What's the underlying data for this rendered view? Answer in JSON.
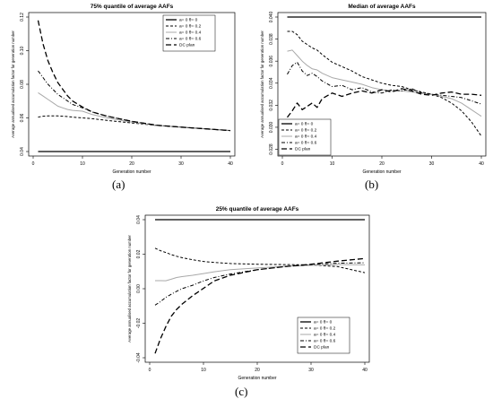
{
  "captions": {
    "a": "(a)",
    "b": "(b)",
    "c": "(c)"
  },
  "colors": {
    "text": "#000000",
    "grid": "#000000",
    "alt_series": "#a9a9a9"
  },
  "chart_data": [
    {
      "type": "line",
      "title": "75% quantile of average AAFs",
      "xlabel": "Generation number",
      "ylabel": "Average annualised accumulation factor for generation number",
      "xlim": [
        0,
        40
      ],
      "ylim": [
        0.04,
        0.12
      ],
      "xticks": [
        "0",
        "10",
        "20",
        "30",
        "40"
      ],
      "yticks": [
        "0.04",
        "0.06",
        "0.08",
        "0.10",
        "0.12"
      ],
      "legend_position": "top-right",
      "x": [
        1,
        2,
        3,
        4,
        5,
        6,
        7,
        8,
        10,
        12,
        15,
        20,
        25,
        30,
        35,
        40
      ],
      "series": [
        {
          "name": "a= 0  θ= 0",
          "style": "solid",
          "color": "#000000",
          "width": 1.3,
          "values": [
            0.04,
            0.04,
            0.04,
            0.04,
            0.04,
            0.04,
            0.04,
            0.04,
            0.04,
            0.04,
            0.04,
            0.04,
            0.04,
            0.04,
            0.04,
            0.04
          ]
        },
        {
          "name": "a= 0  θ= 0.2",
          "style": "dashed",
          "color": "#000000",
          "width": 1,
          "values": [
            0.0605,
            0.061,
            0.0612,
            0.0612,
            0.0612,
            0.061,
            0.0608,
            0.0605,
            0.06,
            0.0595,
            0.0585,
            0.057,
            0.0555,
            0.0545,
            0.0535,
            0.0525
          ]
        },
        {
          "name": "a= 0  θ= 0.4",
          "style": "solid",
          "color": "#a9a9a9",
          "width": 1,
          "values": [
            0.075,
            0.073,
            0.071,
            0.069,
            0.067,
            0.066,
            0.065,
            0.0645,
            0.064,
            0.062,
            0.06,
            0.0575,
            0.0555,
            0.0545,
            0.0535,
            0.0525
          ]
        },
        {
          "name": "a= 0  θ= 0.6",
          "style": "dotdash",
          "color": "#000000",
          "width": 1,
          "values": [
            0.088,
            0.084,
            0.08,
            0.077,
            0.074,
            0.072,
            0.07,
            0.068,
            0.066,
            0.0635,
            0.061,
            0.058,
            0.0557,
            0.0545,
            0.0535,
            0.0525
          ]
        },
        {
          "name": "DC plan",
          "style": "longdash",
          "color": "#000000",
          "width": 1.3,
          "values": [
            0.118,
            0.104,
            0.094,
            0.087,
            0.081,
            0.077,
            0.073,
            0.07,
            0.0665,
            0.0635,
            0.061,
            0.058,
            0.0557,
            0.0545,
            0.0535,
            0.0525
          ]
        }
      ]
    },
    {
      "type": "line",
      "title": "Median of average AAFs",
      "xlabel": "Generation number",
      "ylabel": "Average annualised accumulation factor for generation number",
      "xlim": [
        0,
        40
      ],
      "ylim": [
        0.0278,
        0.04
      ],
      "xticks": [
        "0",
        "10",
        "20",
        "30",
        "40"
      ],
      "yticks": [
        "0.028",
        "0.030",
        "0.032",
        "0.034",
        "0.036",
        "0.038",
        "0.040"
      ],
      "legend_position": "bottom-left",
      "x": [
        1,
        2,
        3,
        4,
        5,
        6,
        7,
        8,
        10,
        12,
        14,
        16,
        18,
        20,
        22,
        24,
        26,
        28,
        30,
        32,
        34,
        36,
        38,
        40
      ],
      "series": [
        {
          "name": "a= 0  θ= 0",
          "style": "solid",
          "color": "#000000",
          "width": 1.3,
          "values": [
            0.04,
            0.04,
            0.04,
            0.04,
            0.04,
            0.04,
            0.04,
            0.04,
            0.04,
            0.04,
            0.04,
            0.04,
            0.04,
            0.04,
            0.04,
            0.04,
            0.04,
            0.04,
            0.04,
            0.04,
            0.04,
            0.04,
            0.04,
            0.04
          ]
        },
        {
          "name": "a= 0  θ= 0.2",
          "style": "dashed",
          "color": "#000000",
          "width": 1,
          "values": [
            0.0387,
            0.0387,
            0.0384,
            0.0378,
            0.0375,
            0.0372,
            0.037,
            0.0366,
            0.0359,
            0.0355,
            0.0351,
            0.0346,
            0.0343,
            0.034,
            0.0338,
            0.0337,
            0.0334,
            0.0332,
            0.033,
            0.0327,
            0.0322,
            0.0315,
            0.0305,
            0.0292
          ]
        },
        {
          "name": "a= 0  θ= 0.4",
          "style": "solid",
          "color": "#a9a9a9",
          "width": 1,
          "values": [
            0.0369,
            0.037,
            0.0365,
            0.036,
            0.0356,
            0.0353,
            0.0352,
            0.0349,
            0.0345,
            0.0343,
            0.0341,
            0.0339,
            0.0336,
            0.0334,
            0.0333,
            0.0333,
            0.0332,
            0.0331,
            0.033,
            0.0328,
            0.0326,
            0.0322,
            0.0316,
            0.031
          ]
        },
        {
          "name": "a= 0  θ= 0.6",
          "style": "dotdash",
          "color": "#000000",
          "width": 1,
          "values": [
            0.0348,
            0.0356,
            0.0359,
            0.0351,
            0.0347,
            0.0349,
            0.0346,
            0.0342,
            0.0337,
            0.0338,
            0.0334,
            0.0336,
            0.0332,
            0.0331,
            0.0334,
            0.0333,
            0.0335,
            0.0331,
            0.033,
            0.0329,
            0.0328,
            0.0327,
            0.0324,
            0.0321
          ]
        },
        {
          "name": "DC plan",
          "style": "longdash",
          "color": "#000000",
          "width": 1.3,
          "values": [
            0.0309,
            0.0315,
            0.0322,
            0.0316,
            0.0319,
            0.0322,
            0.0318,
            0.0326,
            0.0331,
            0.0328,
            0.0331,
            0.0333,
            0.0331,
            0.0334,
            0.0332,
            0.0335,
            0.0333,
            0.033,
            0.0329,
            0.0331,
            0.0332,
            0.033,
            0.033,
            0.0329
          ]
        }
      ]
    },
    {
      "type": "line",
      "title": "25% quantile of average AAFs",
      "xlabel": "Generation number",
      "ylabel": "Average annualised accumulation factor for generation number",
      "xlim": [
        0,
        40
      ],
      "ylim": [
        -0.04,
        0.04
      ],
      "xticks": [
        "0",
        "10",
        "20",
        "30",
        "40"
      ],
      "yticks": [
        "-0.04",
        "-0.02",
        "0.00",
        "0.02",
        "0.04"
      ],
      "legend_position": "bottom-right",
      "x": [
        1,
        2,
        3,
        4,
        5,
        6,
        8,
        10,
        12,
        15,
        20,
        25,
        30,
        35,
        40
      ],
      "series": [
        {
          "name": "a= 0  θ= 0",
          "style": "solid",
          "color": "#000000",
          "width": 1.3,
          "values": [
            0.04,
            0.04,
            0.04,
            0.04,
            0.04,
            0.04,
            0.04,
            0.04,
            0.04,
            0.04,
            0.04,
            0.04,
            0.04,
            0.04,
            0.04
          ]
        },
        {
          "name": "a= 0  θ= 0.2",
          "style": "dashed",
          "color": "#000000",
          "width": 1,
          "values": [
            0.0235,
            0.022,
            0.021,
            0.0198,
            0.0188,
            0.018,
            0.0168,
            0.0158,
            0.0152,
            0.0146,
            0.0142,
            0.014,
            0.0138,
            0.0128,
            0.0093
          ]
        },
        {
          "name": "a= 0  θ= 0.4",
          "style": "solid",
          "color": "#a9a9a9",
          "width": 1,
          "values": [
            0.0047,
            0.0047,
            0.0046,
            0.0055,
            0.0065,
            0.007,
            0.0078,
            0.0088,
            0.0098,
            0.011,
            0.012,
            0.013,
            0.0135,
            0.014,
            0.0138
          ]
        },
        {
          "name": "a= 0  θ= 0.6",
          "style": "dotdash",
          "color": "#000000",
          "width": 1,
          "values": [
            -0.0095,
            -0.0075,
            -0.005,
            -0.0032,
            -0.0015,
            0.0,
            0.002,
            0.0045,
            0.0065,
            0.0085,
            0.011,
            0.0128,
            0.014,
            0.0148,
            0.015
          ]
        },
        {
          "name": "DC plan",
          "style": "longdash",
          "color": "#000000",
          "width": 1.3,
          "values": [
            -0.0375,
            -0.029,
            -0.022,
            -0.016,
            -0.012,
            -0.009,
            -0.004,
            0.0002,
            0.0045,
            0.0078,
            0.011,
            0.0128,
            0.0142,
            0.016,
            0.0175
          ]
        }
      ]
    }
  ]
}
